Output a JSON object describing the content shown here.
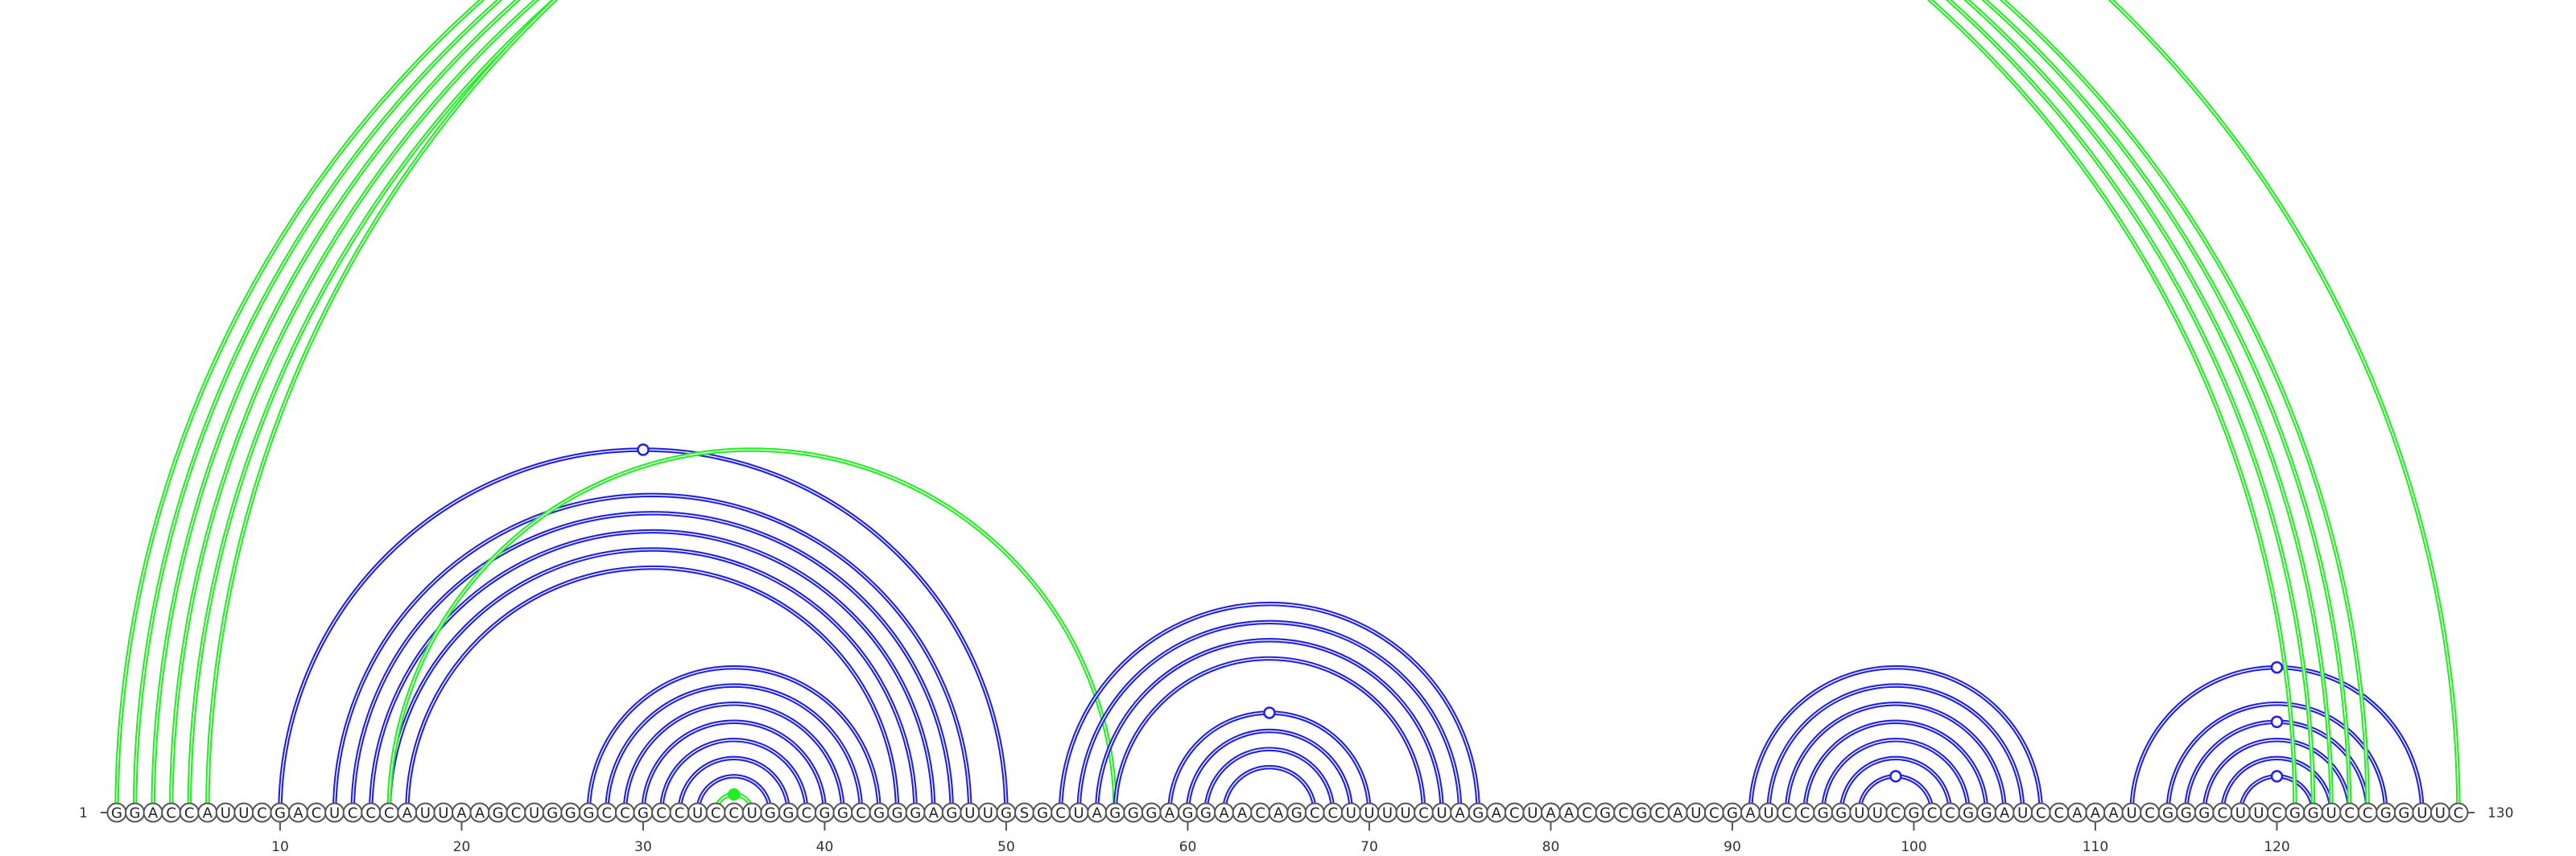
{
  "sequence": "GGACCAUUCGACUCCCAUUAAGCUGGGCCGCCUCCUGGCGGCGGGAGUUGSGCUAGGGAGGAACAGCCUUUUCUAGACUAACGCGCAUCGAUCCGGUUCGCCGGAUCCAAAUCGGGCUUCGGUCCGGUUC",
  "start_label": "1",
  "end_label": "130",
  "ticks": [
    "10",
    "20",
    "30",
    "40",
    "50",
    "60",
    "70",
    "80",
    "90",
    "100",
    "110",
    "120"
  ],
  "colors": {
    "primary_arc": "#2020e6",
    "secondary_arc": "#22ee22",
    "backbone": "#555555"
  },
  "arc_groups": [
    {
      "color": "primary",
      "pairs": [
        [
          10,
          50
        ],
        [
          13,
          48
        ],
        [
          14,
          47
        ],
        [
          15,
          46
        ],
        [
          16,
          45
        ],
        [
          17,
          44
        ]
      ]
    },
    {
      "color": "primary",
      "pairs": [
        [
          27,
          43
        ],
        [
          28,
          42
        ],
        [
          29,
          41
        ],
        [
          30,
          40
        ],
        [
          31,
          39
        ],
        [
          32,
          38
        ],
        [
          33,
          37
        ]
      ]
    },
    {
      "color": "secondary",
      "pairs": [
        [
          34,
          36
        ]
      ]
    },
    {
      "color": "secondary",
      "pairs": [
        [
          16,
          56
        ]
      ]
    },
    {
      "color": "primary",
      "pairs": [
        [
          53,
          76
        ],
        [
          54,
          75
        ],
        [
          55,
          74
        ],
        [
          56,
          73
        ]
      ]
    },
    {
      "color": "primary",
      "pairs": [
        [
          59,
          70
        ],
        [
          60,
          69
        ],
        [
          61,
          68
        ],
        [
          62,
          67
        ]
      ]
    },
    {
      "color": "primary",
      "pairs": [
        [
          91,
          107
        ],
        [
          92,
          106
        ],
        [
          93,
          105
        ],
        [
          94,
          104
        ],
        [
          95,
          103
        ],
        [
          96,
          102
        ],
        [
          97,
          101
        ]
      ]
    },
    {
      "color": "primary",
      "pairs": [
        [
          112,
          128
        ],
        [
          114,
          126
        ],
        [
          115,
          125
        ],
        [
          116,
          124
        ],
        [
          117,
          123
        ],
        [
          118,
          122
        ]
      ]
    },
    {
      "color": "secondary",
      "pairs": [
        [
          1,
          121
        ],
        [
          2,
          122
        ],
        [
          3,
          123
        ],
        [
          4,
          124
        ],
        [
          5,
          125
        ]
      ]
    },
    {
      "color": "secondary",
      "pairs": [
        [
          6,
          130
        ]
      ]
    }
  ],
  "marker_dots": [
    {
      "pair": [
        6,
        130
      ],
      "style": "open",
      "color": "secondary"
    },
    {
      "pair": [
        10,
        50
      ],
      "style": "open",
      "color": "primary"
    },
    {
      "pair": [
        34,
        36
      ],
      "style": "filled",
      "color": "secondary"
    },
    {
      "pair": [
        59,
        70
      ],
      "style": "open",
      "color": "primary"
    },
    {
      "pair": [
        97,
        101
      ],
      "style": "open",
      "color": "primary"
    },
    {
      "pair": [
        118,
        122
      ],
      "style": "open",
      "color": "primary"
    },
    {
      "pair": [
        115,
        125
      ],
      "style": "open",
      "color": "primary"
    },
    {
      "pair": [
        112,
        128
      ],
      "style": "open",
      "color": "primary"
    }
  ]
}
